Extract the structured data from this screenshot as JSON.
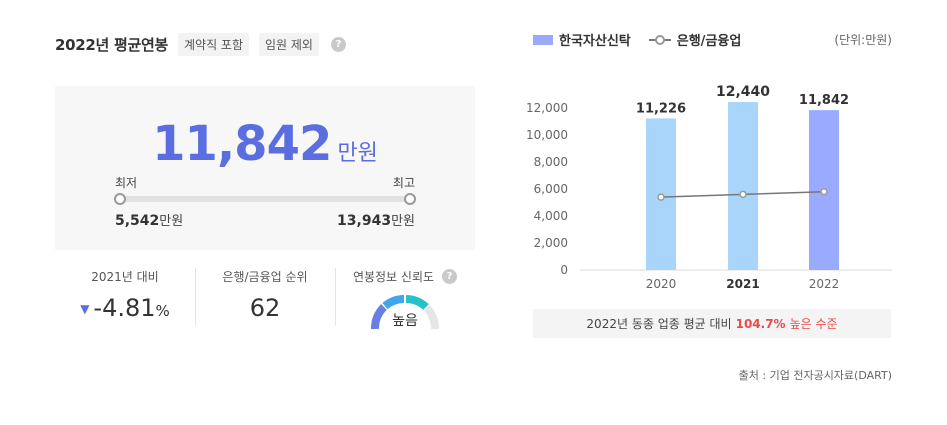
{
  "header": {
    "title": "2022년 평균연봉",
    "tags": [
      "계약직 포함",
      "임원 제외"
    ],
    "help": "?"
  },
  "summary": {
    "value": "11,842",
    "unit": "만원",
    "min_label": "최저",
    "max_label": "최고",
    "min_value": "5,542",
    "max_value": "13,943",
    "value_unit": "만원"
  },
  "stats": {
    "yoy_label": "2021년 대비",
    "yoy_value": "-4.81",
    "yoy_unit": "%",
    "rank_label": "은행/금융업 순위",
    "rank_value": "62",
    "reliability_label": "연봉정보 신뢰도",
    "reliability_value": "높음"
  },
  "legend": {
    "company": "한국자산신탁",
    "industry": "은행/금융업",
    "unit": "(단위:만원)"
  },
  "colors": {
    "accent": "#5b6ee0",
    "bar_past": "#a9d5fb",
    "bar_current": "#99aaff",
    "line": "#777777",
    "highlight": "#e74c4c"
  },
  "chart_data": {
    "type": "bar",
    "categories": [
      "2020",
      "2021",
      "2022"
    ],
    "series": [
      {
        "name": "한국자산신탁",
        "values": [
          11226,
          12440,
          11842
        ],
        "labels": [
          "11,226",
          "12,440",
          "11,842"
        ]
      },
      {
        "name": "은행/금융업",
        "type": "line",
        "values": [
          5400,
          5600,
          5800
        ]
      }
    ],
    "yticks": [
      "0",
      "2,000",
      "4,000",
      "6,000",
      "8,000",
      "10,000",
      "12,000"
    ],
    "ylim": [
      0,
      12000
    ],
    "highlight_category": "2021",
    "current_category": "2022",
    "grid": false,
    "legend_position": "top-left"
  },
  "compare": {
    "text": "2022년 동종 업종 평균 대비",
    "percent": "104.7%",
    "result": "높은 수준"
  },
  "source": "출처 : 기업 전자공시자료(DART)"
}
